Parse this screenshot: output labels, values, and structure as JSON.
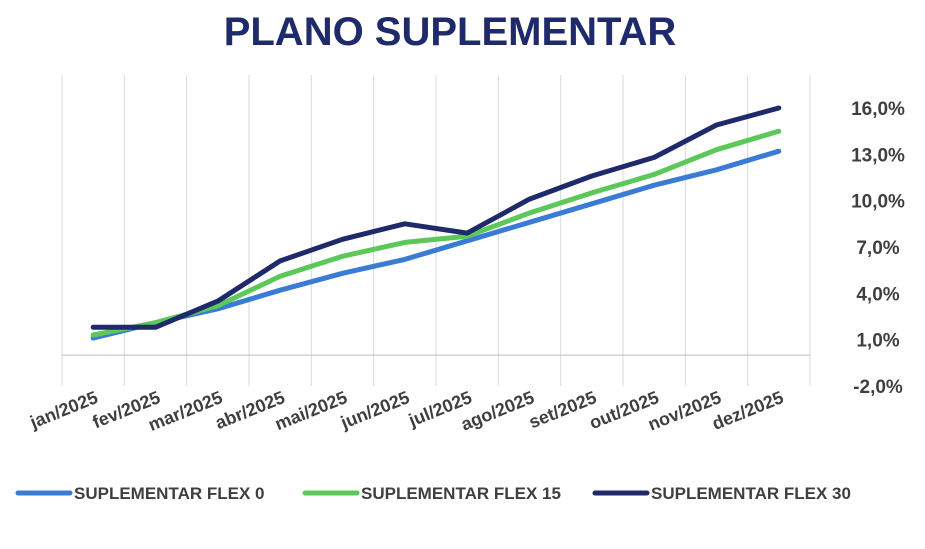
{
  "chart_data": {
    "type": "line",
    "title": "PLANO SUPLEMENTAR",
    "xlabel": "",
    "ylabel": "",
    "categories": [
      "jan/2025",
      "fev/2025",
      "mar/2025",
      "abr/2025",
      "mai/2025",
      "jun/2025",
      "jul/2025",
      "ago/2025",
      "set/2025",
      "out/2025",
      "nov/2025",
      "dez/2025"
    ],
    "y_ticks": [
      -2,
      1,
      4,
      7,
      10,
      13,
      16
    ],
    "y_tick_labels": [
      "-2,0%",
      "1,0%",
      "4,0%",
      "7,0%",
      "10,0%",
      "13,0%",
      "16,0%"
    ],
    "ylim": [
      -2,
      17
    ],
    "y_axis_position": "right",
    "grid": "vertical",
    "legend_position": "bottom",
    "series": [
      {
        "name": "SUPLEMENTAR FLEX 0",
        "color": "#3a7bd5",
        "values": [
          1.1,
          2.1,
          3.0,
          4.2,
          5.3,
          6.2,
          7.4,
          8.6,
          9.8,
          11.0,
          12.0,
          13.2
        ]
      },
      {
        "name": "SUPLEMENTAR FLEX 15",
        "color": "#5cc85a",
        "values": [
          1.3,
          2.1,
          3.2,
          5.1,
          6.4,
          7.3,
          7.7,
          9.2,
          10.5,
          11.7,
          13.3,
          14.5
        ]
      },
      {
        "name": "SUPLEMENTAR FLEX 30",
        "color": "#1f2a6b",
        "values": [
          1.8,
          1.8,
          3.5,
          6.1,
          7.5,
          8.5,
          7.9,
          10.1,
          11.6,
          12.8,
          14.9,
          16.0
        ]
      }
    ]
  }
}
